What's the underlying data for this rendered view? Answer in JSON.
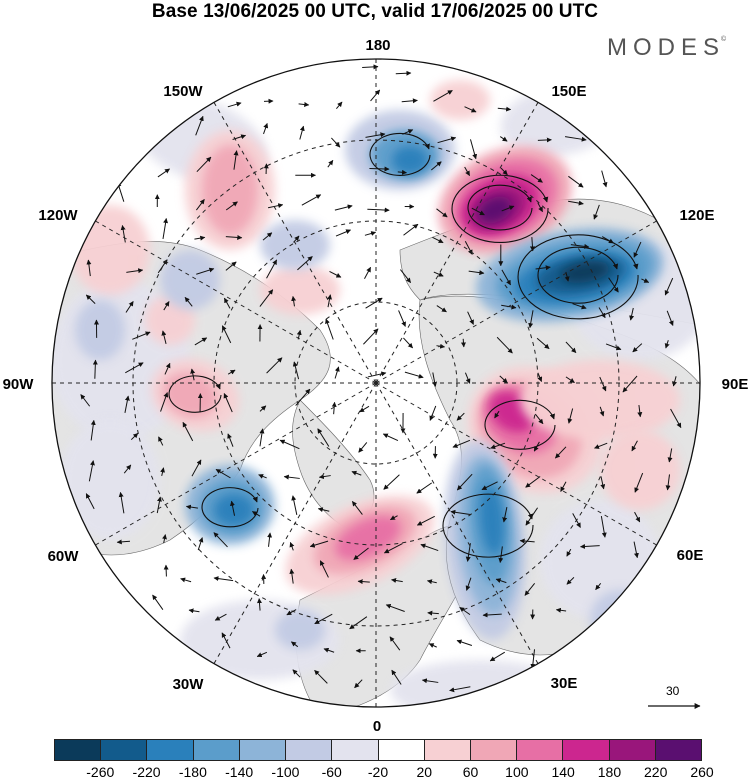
{
  "title": "Base 13/06/2025 00 UTC, valid 17/06/2025 00 UTC",
  "brand": "MODES",
  "brand_mark": "©",
  "longitude_labels": {
    "n180": "180",
    "e150": "150E",
    "e120": "120E",
    "e90": "90E",
    "e60": "60E",
    "e30": "30E",
    "s0": "0",
    "w30": "30W",
    "w60": "60W",
    "w90": "90W",
    "w120": "120W",
    "w150": "150W"
  },
  "reference_vector": {
    "label": "30"
  },
  "colorbar": {
    "colors": [
      "#0b3a5a",
      "#125b8c",
      "#2a80bb",
      "#5b9dcb",
      "#8db4d8",
      "#c2cbe4",
      "#e3e3ee",
      "#ffffff",
      "#f7d0d3",
      "#f0a7b6",
      "#e76fa5",
      "#cc268f",
      "#99167b",
      "#5a0f70"
    ],
    "ticks": [
      "-260",
      "-220",
      "-180",
      "-140",
      "-100",
      "-60",
      "-20",
      "20",
      "60",
      "100",
      "140",
      "180",
      "220",
      "260"
    ]
  },
  "field_colors": {
    "land": "#e4e4e4",
    "ocean": "#ffffff"
  }
}
